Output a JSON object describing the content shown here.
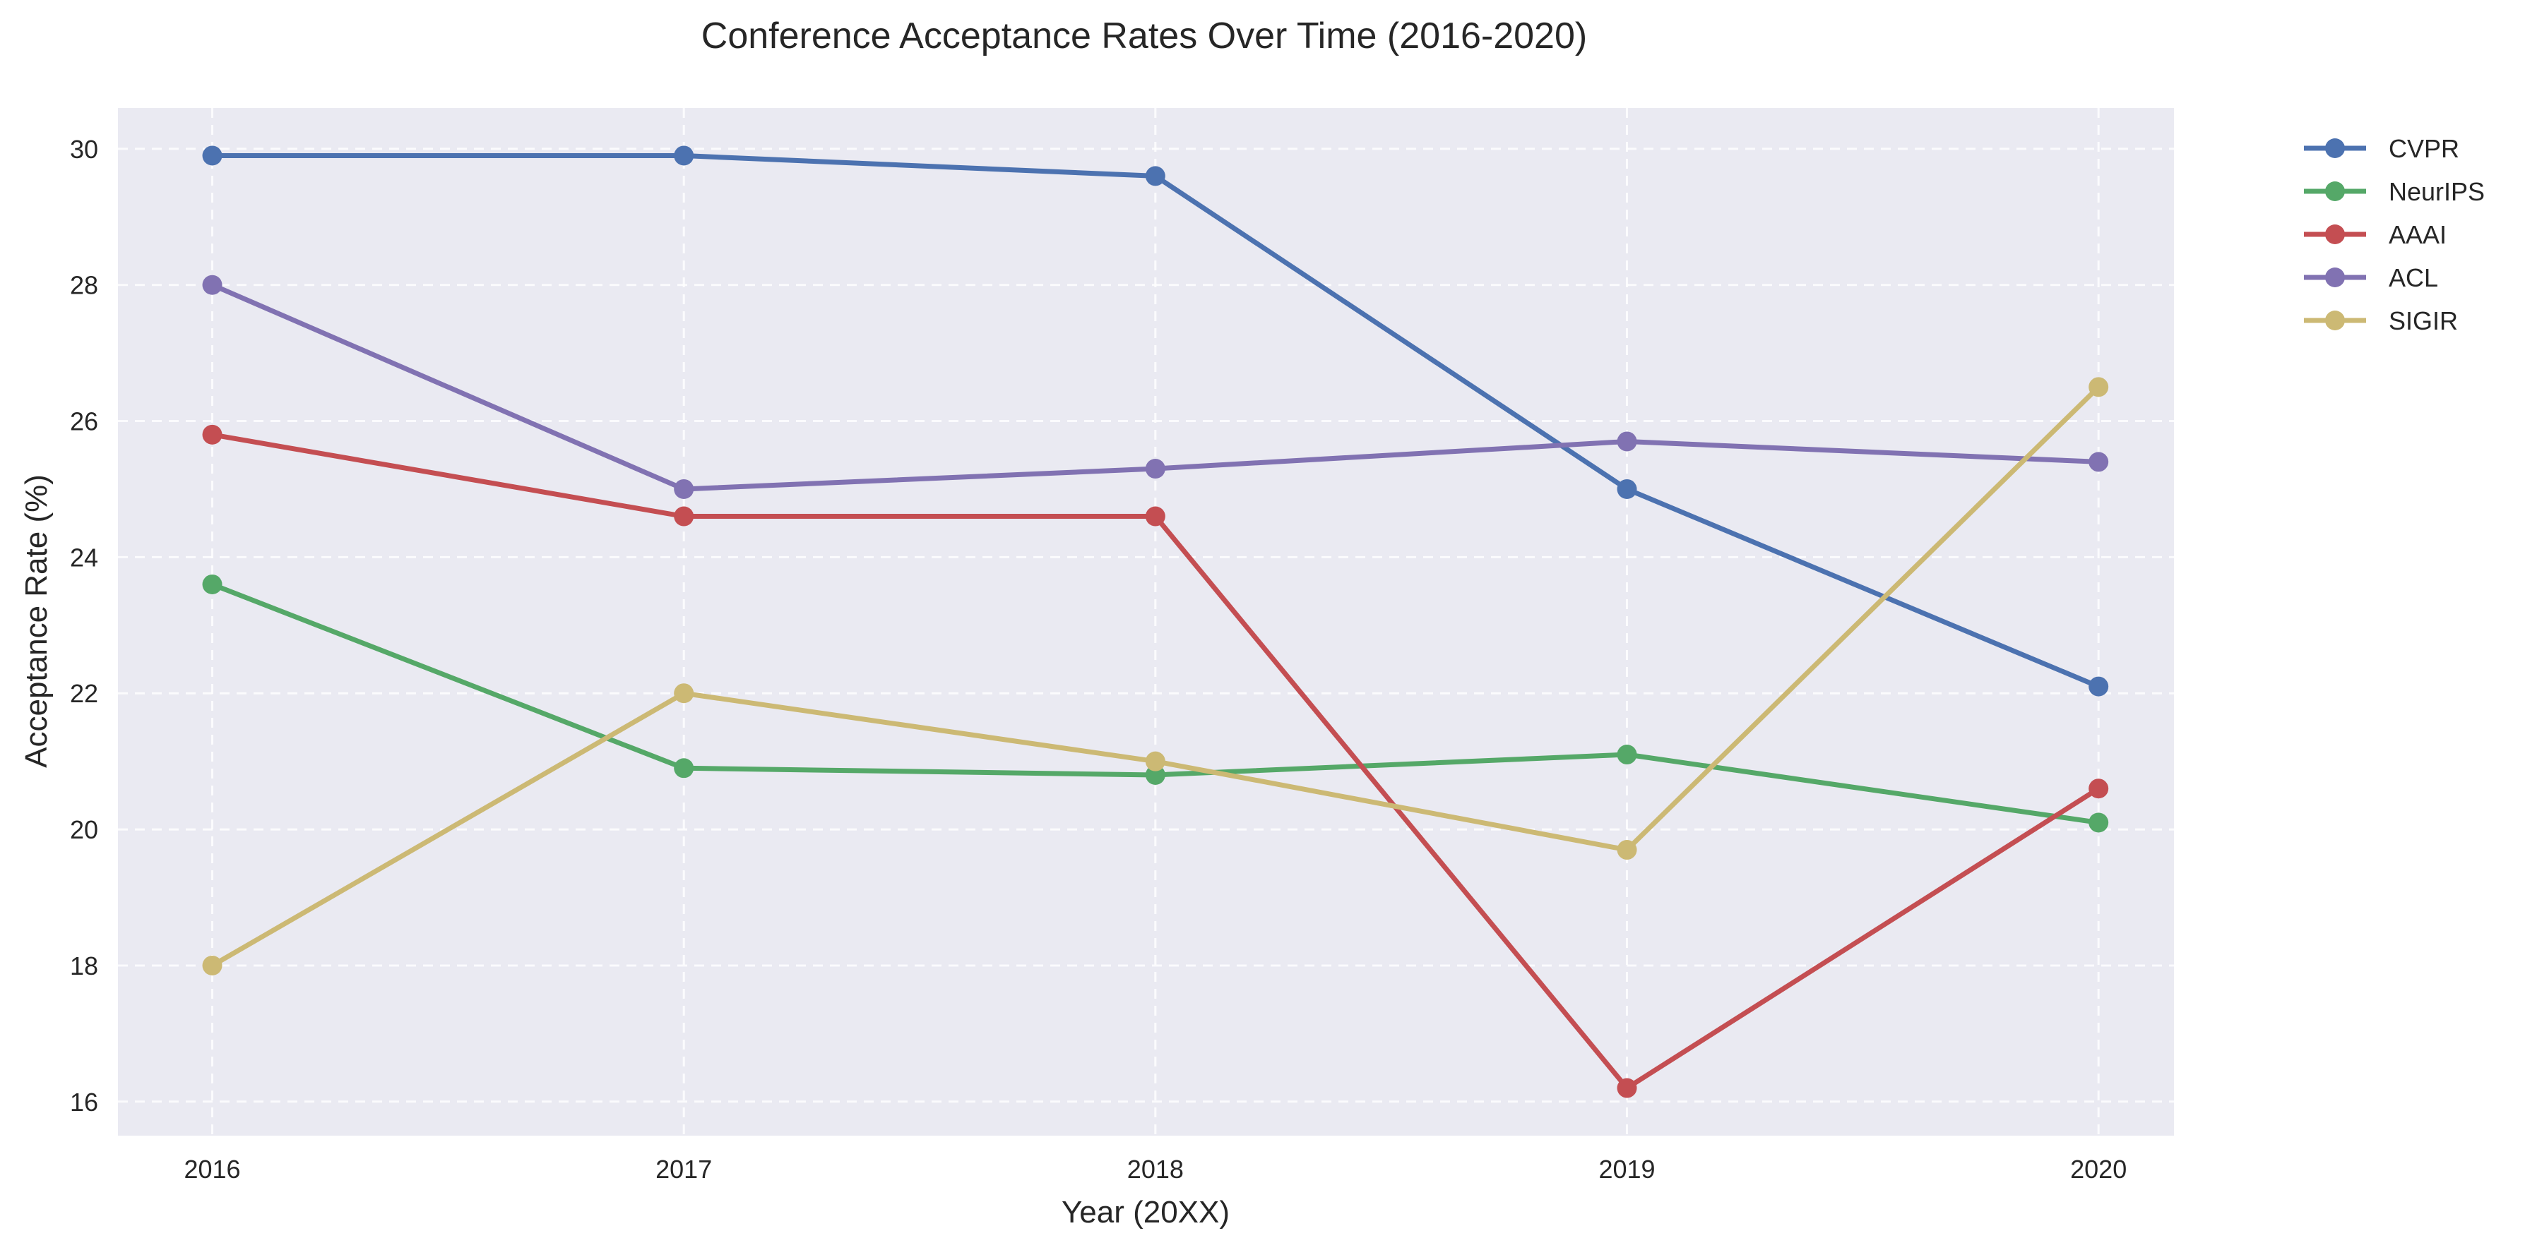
{
  "chart_data": {
    "type": "line",
    "title": "Conference Acceptance Rates Over Time (2016-2020)",
    "xlabel": "Year (20XX)",
    "ylabel": "Acceptance Rate (%)",
    "x": [
      2016,
      2017,
      2018,
      2019,
      2020
    ],
    "x_tick_labels": [
      "2016",
      "2017",
      "2018",
      "2019",
      "2020"
    ],
    "xlim": [
      2015.8,
      2020.16
    ],
    "ylim": [
      15.5,
      30.6
    ],
    "y_ticks": [
      16,
      18,
      20,
      22,
      24,
      26,
      28,
      30
    ],
    "y_tick_labels": [
      "16",
      "18",
      "20",
      "22",
      "24",
      "26",
      "28",
      "30"
    ],
    "grid": true,
    "legend_position": "outside-top-right",
    "background_color": "#EAEAF2",
    "series": [
      {
        "name": "CVPR",
        "color": "#4C72B0",
        "values": [
          29.9,
          29.9,
          29.6,
          25.0,
          22.1
        ]
      },
      {
        "name": "NeurIPS",
        "color": "#55A868",
        "values": [
          23.6,
          20.9,
          20.8,
          21.1,
          20.1
        ]
      },
      {
        "name": "AAAI",
        "color": "#C44E52",
        "values": [
          25.8,
          24.6,
          24.6,
          16.2,
          20.6
        ]
      },
      {
        "name": "ACL",
        "color": "#8172B2",
        "values": [
          28.0,
          25.0,
          25.3,
          25.7,
          25.4
        ]
      },
      {
        "name": "SIGIR",
        "color": "#CCB974",
        "values": [
          18.0,
          22.0,
          21.0,
          19.7,
          26.5
        ]
      }
    ]
  }
}
